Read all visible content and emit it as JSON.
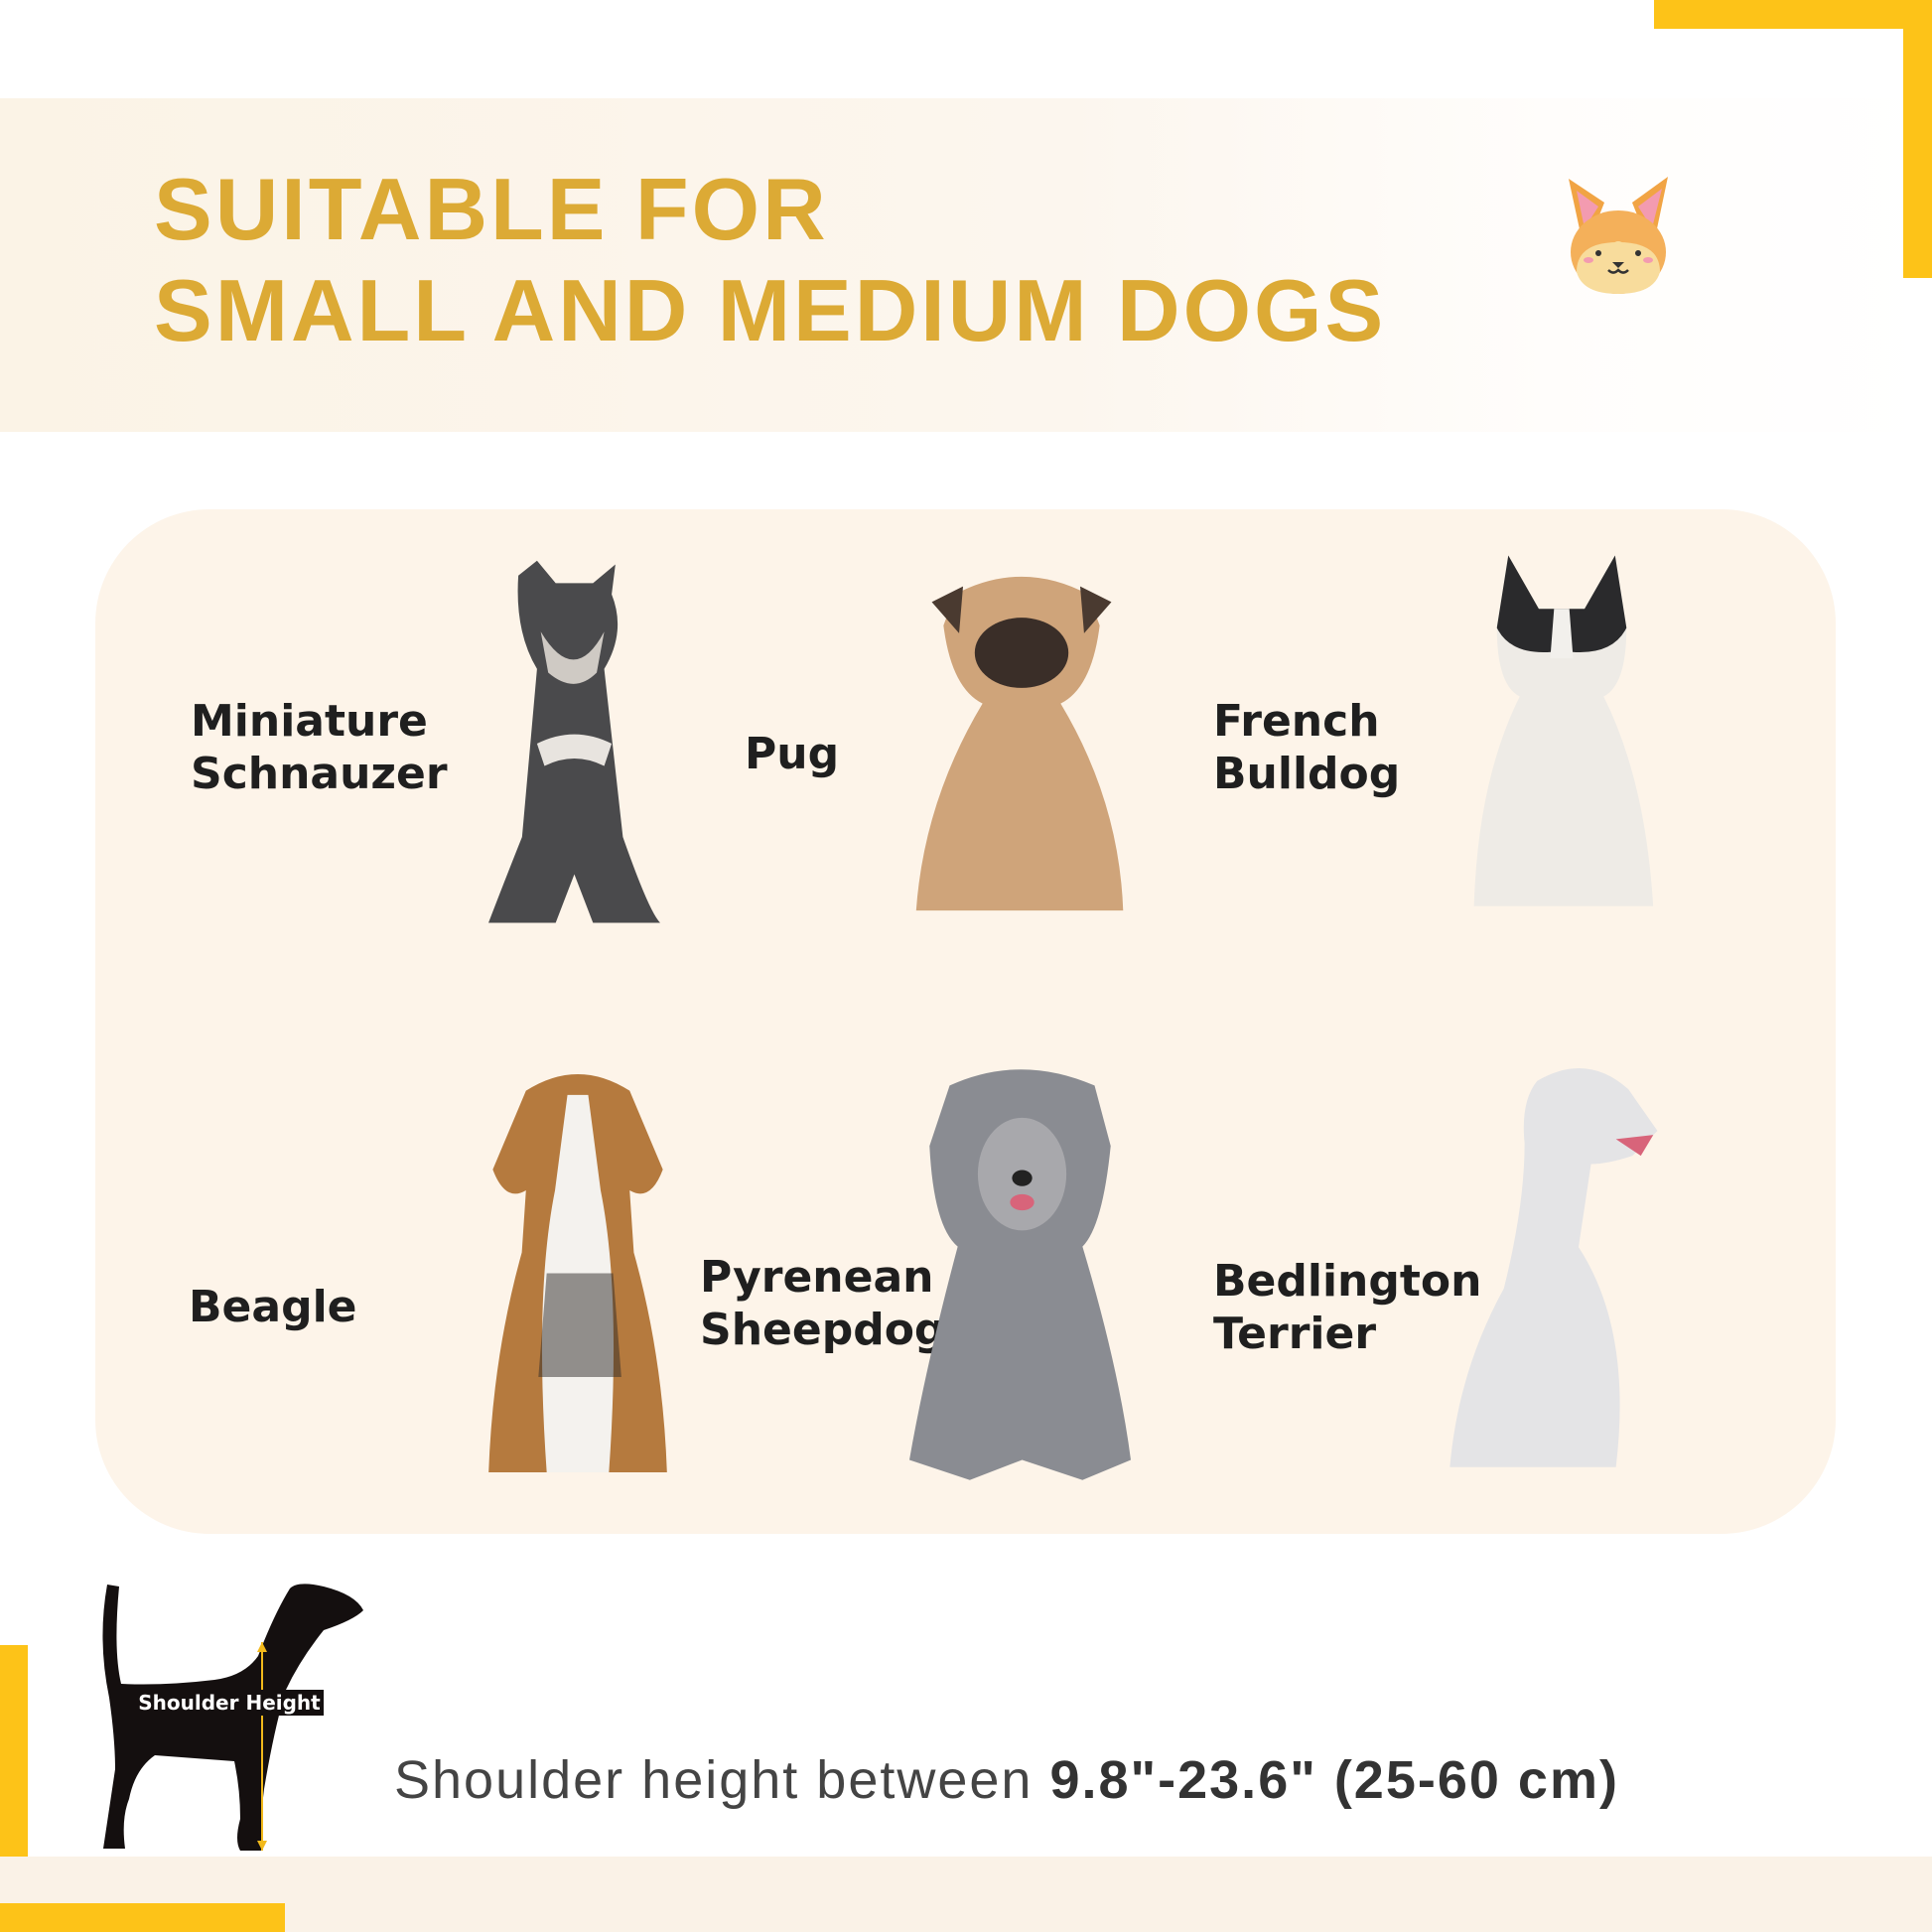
{
  "header": {
    "title_line1": "SUITABLE FOR",
    "title_line2": "SMALL AND MEDIUM DOGS",
    "accent_color": "#dcaa35",
    "mascot_icon": "corgi-face-icon"
  },
  "breeds": [
    {
      "line1": "Miniature",
      "line2": "Schnauzer"
    },
    {
      "line1": "Pug",
      "line2": ""
    },
    {
      "line1": "French",
      "line2": "Bulldog"
    },
    {
      "line1": "Beagle",
      "line2": ""
    },
    {
      "line1": "Pyrenean",
      "line2": "Sheepdog"
    },
    {
      "line1": "Bedlington",
      "line2": "Terrier"
    }
  ],
  "shoulder": {
    "diagram_label": "Shoulder Height",
    "text_prefix": "Shoulder height between ",
    "text_value": "9.8\"-23.6\" (25-60 cm)"
  },
  "colors": {
    "frame_yellow": "#fdc318",
    "panel_bg": "#fdf4e9"
  }
}
